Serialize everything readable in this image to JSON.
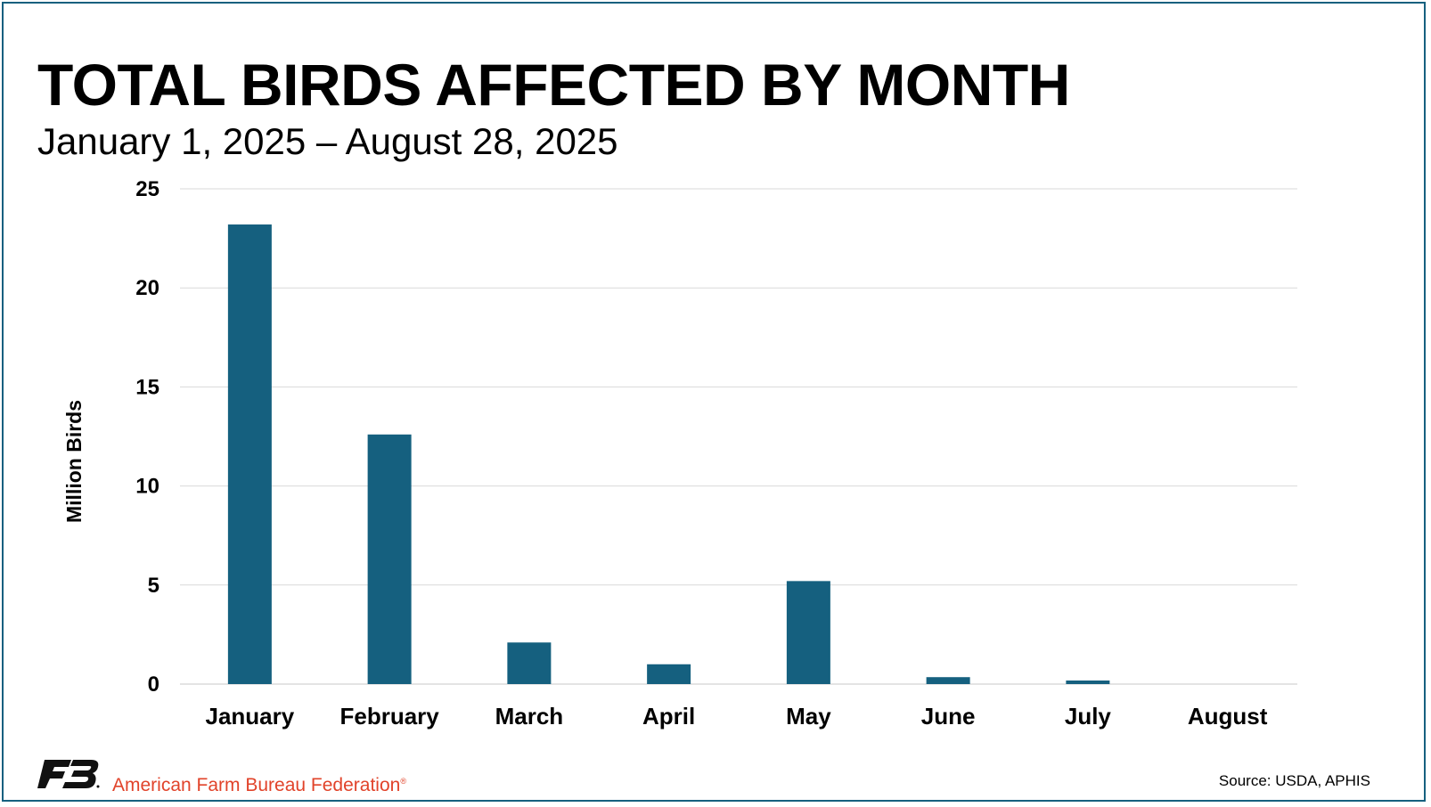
{
  "chart_data": {
    "type": "bar",
    "title": "TOTAL BIRDS AFFECTED BY MONTH",
    "subtitle": "January 1, 2025 – August 28, 2025",
    "ylabel": "Million Birds",
    "xlabel": "",
    "categories": [
      "January",
      "February",
      "March",
      "April",
      "May",
      "June",
      "July",
      "August"
    ],
    "values": [
      23.2,
      12.6,
      2.1,
      1.0,
      5.2,
      0.35,
      0.18,
      0
    ],
    "ylim": [
      0,
      25
    ],
    "yticks": [
      0,
      5,
      10,
      15,
      20,
      25
    ],
    "grid": true,
    "legend": "none",
    "bar_color": "#15607f"
  },
  "footer": {
    "org_name": "American Farm Bureau Federation",
    "org_mark": "®",
    "source": "Source: USDA, APHIS"
  },
  "colors": {
    "border": "#16607f",
    "org_text": "#e1432a",
    "grid": "#d9d9d9"
  },
  "icons": {
    "logo": "fb-logo-icon"
  }
}
